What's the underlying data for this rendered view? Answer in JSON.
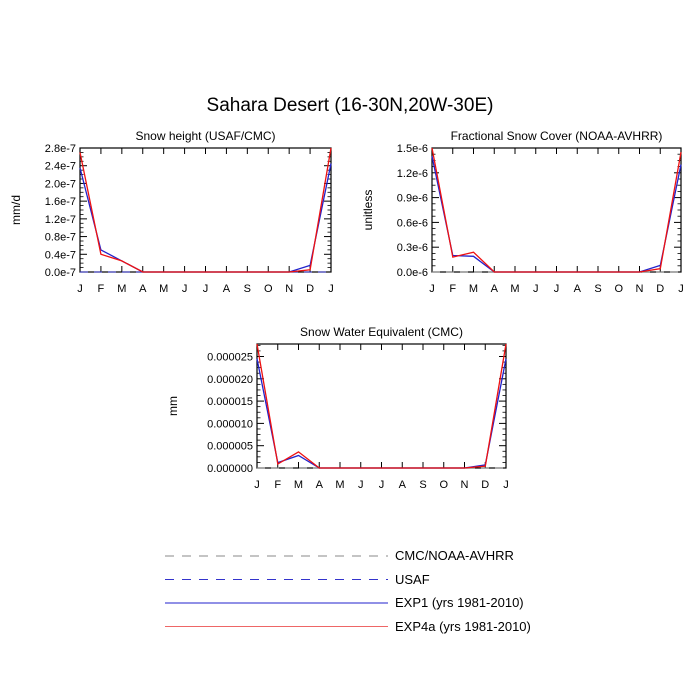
{
  "figure": {
    "title": "Sahara Desert (16-30N,20W-30E)"
  },
  "colors": {
    "cmc": "#888888",
    "usaf": "#3333cc",
    "exp1": "#2222cc",
    "exp4a": "#ee1111",
    "axis": "#000000"
  },
  "chart_data": [
    {
      "type": "line",
      "title": "Snow height (USAF/CMC)",
      "ylabel": "mm/d",
      "xlabel": "",
      "categories": [
        "J",
        "F",
        "M",
        "A",
        "M",
        "J",
        "J",
        "A",
        "S",
        "O",
        "N",
        "D",
        "J"
      ],
      "ylim": [
        0,
        2.8e-07
      ],
      "yticks": [
        "0.0e-7",
        "0.4e-7",
        "0.8e-7",
        "1.2e-7",
        "1.6e-7",
        "2.0e-7",
        "2.4e-7",
        "2.8e-7"
      ],
      "series": [
        {
          "name": "USAF",
          "style": "dashed",
          "color": "#3333cc",
          "values": [
            0,
            0,
            0,
            0,
            0,
            0,
            0,
            0,
            0,
            0,
            0,
            0,
            0
          ]
        },
        {
          "name": "EXP1 (yrs 1981-2010)",
          "color": "#2222cc",
          "values": [
            2.35e-07,
            5e-08,
            2.5e-08,
            0,
            0,
            0,
            0,
            0,
            0,
            0,
            0,
            1.5e-08,
            2.45e-07
          ]
        },
        {
          "name": "EXP4a (yrs 1981-2010)",
          "color": "#ee1111",
          "values": [
            2.7e-07,
            4e-08,
            2.5e-08,
            0,
            0,
            0,
            0,
            0,
            0,
            0,
            0,
            5e-09,
            2.8e-07
          ]
        }
      ]
    },
    {
      "type": "line",
      "title": "Fractional Snow Cover (NOAA-AVHRR)",
      "ylabel": "unitless",
      "xlabel": "",
      "categories": [
        "J",
        "F",
        "M",
        "A",
        "M",
        "J",
        "J",
        "A",
        "S",
        "O",
        "N",
        "D",
        "J"
      ],
      "ylim": [
        0,
        1.5e-06
      ],
      "yticks": [
        "0.0e-6",
        "0.3e-6",
        "0.6e-6",
        "0.9e-6",
        "1.2e-6",
        "1.5e-6"
      ],
      "series": [
        {
          "name": "CMC/NOAA-AVHRR",
          "style": "dashed",
          "color": "#888888",
          "values": [
            0,
            0,
            0,
            0,
            0,
            0,
            0,
            0,
            0,
            0,
            0,
            0,
            0
          ]
        },
        {
          "name": "EXP1 (yrs 1981-2010)",
          "color": "#2222cc",
          "values": [
            1.4e-06,
            2e-07,
            1.9e-07,
            0,
            0,
            0,
            0,
            0,
            0,
            0,
            0,
            8e-08,
            1.3e-06
          ]
        },
        {
          "name": "EXP4a (yrs 1981-2010)",
          "color": "#ee1111",
          "values": [
            1.5e-06,
            1.8e-07,
            2.4e-07,
            0,
            0,
            0,
            0,
            0,
            0,
            0,
            0,
            4e-08,
            1.45e-06
          ]
        }
      ]
    },
    {
      "type": "line",
      "title": "Snow Water Equivalent (CMC)",
      "ylabel": "mm",
      "xlabel": "",
      "categories": [
        "J",
        "F",
        "M",
        "A",
        "M",
        "J",
        "J",
        "A",
        "S",
        "O",
        "N",
        "D",
        "J"
      ],
      "ylim": [
        0,
        2.78e-05
      ],
      "yticks": [
        "0.000000",
        "0.000005",
        "0.000010",
        "0.000015",
        "0.000020",
        "0.000025"
      ],
      "series": [
        {
          "name": "CMC/NOAA-AVHRR",
          "style": "dashed",
          "color": "#888888",
          "values": [
            0,
            0,
            0,
            0,
            0,
            0,
            0,
            0,
            0,
            0,
            0,
            0,
            0
          ]
        },
        {
          "name": "EXP1 (yrs 1981-2010)",
          "color": "#2222cc",
          "values": [
            2.45e-05,
            1.2e-06,
            2.8e-06,
            0,
            0,
            0,
            0,
            0,
            0,
            0,
            0,
            7e-07,
            2.45e-05
          ]
        },
        {
          "name": "EXP4a (yrs 1981-2010)",
          "color": "#ee1111",
          "values": [
            2.78e-05,
            9e-07,
            3.6e-06,
            0,
            0,
            0,
            0,
            0,
            0,
            0,
            0,
            4e-07,
            2.78e-05
          ]
        }
      ]
    }
  ],
  "legend": [
    {
      "label": "CMC/NOAA-AVHRR",
      "style": "dashed",
      "color": "#888888"
    },
    {
      "label": "USAF",
      "style": "dashed",
      "color": "#3333cc"
    },
    {
      "label": "EXP1 (yrs 1981-2010)",
      "style": "solid",
      "color": "#2222cc"
    },
    {
      "label": "EXP4a (yrs 1981-2010)",
      "style": "solid",
      "color": "#ee6666"
    }
  ]
}
